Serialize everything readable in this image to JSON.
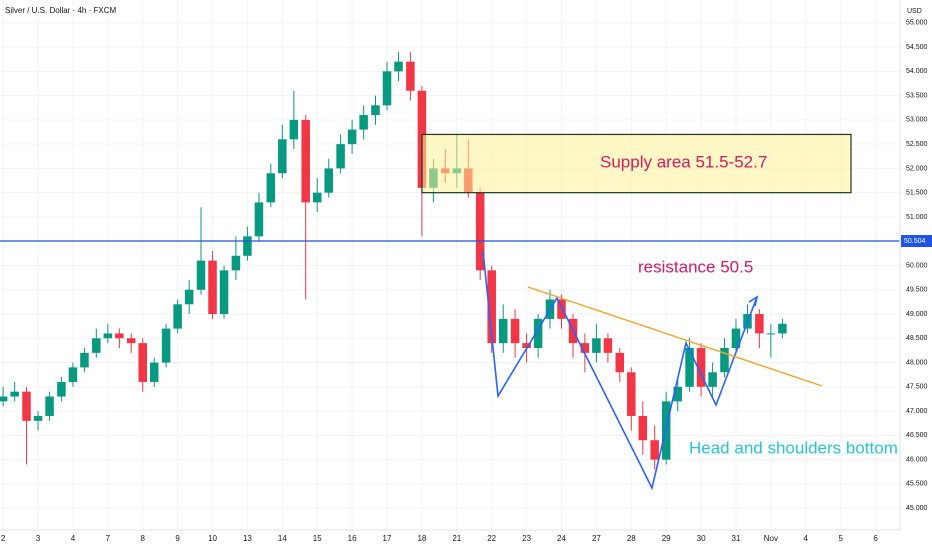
{
  "chart_data": {
    "type": "candlestick",
    "title": "Silver / U.S. Dollar · 4h · FXCM",
    "currency": "USD",
    "up_color": "#089981",
    "down_color": "#f23645",
    "price_line": 50.504,
    "price_line_color": "#1e53e5",
    "supply_zone": [
      51.5,
      52.7
    ],
    "annotations": [
      {
        "text": "Supply area 51.5-52.7",
        "color": "#d81b60"
      },
      {
        "text": "resistance 50.5",
        "color": "#d81b60"
      },
      {
        "text": "Head and shoulders bottom",
        "color": "#26c6da"
      }
    ],
    "xlim": [
      -0.09,
      25.7
    ],
    "xticks": [
      {
        "value": 0,
        "label": "2"
      },
      {
        "value": 1,
        "label": "3"
      },
      {
        "value": 2,
        "label": "4"
      },
      {
        "value": 3,
        "label": "7"
      },
      {
        "value": 4,
        "label": "8"
      },
      {
        "value": 5,
        "label": "9"
      },
      {
        "value": 6,
        "label": "10"
      },
      {
        "value": 7,
        "label": "13"
      },
      {
        "value": 8,
        "label": "14"
      },
      {
        "value": 9,
        "label": "15"
      },
      {
        "value": 10,
        "label": "16"
      },
      {
        "value": 11,
        "label": "17"
      },
      {
        "value": 12,
        "label": "18"
      },
      {
        "value": 13,
        "label": "21"
      },
      {
        "value": 14,
        "label": "22"
      },
      {
        "value": 15,
        "label": "23"
      },
      {
        "value": 16,
        "label": "24"
      },
      {
        "value": 17,
        "label": "27"
      },
      {
        "value": 18,
        "label": "28"
      },
      {
        "value": 19,
        "label": "29"
      },
      {
        "value": 20,
        "label": "30"
      },
      {
        "value": 21,
        "label": "31"
      },
      {
        "value": 22,
        "label": "Nov"
      },
      {
        "value": 23,
        "label": "4"
      },
      {
        "value": 24,
        "label": "5"
      },
      {
        "value": 25,
        "label": "6"
      }
    ],
    "ylim": [
      44.55,
      55.47
    ],
    "yticks": [
      {
        "value": 45,
        "label": "45.000"
      },
      {
        "value": 45.5,
        "label": "45.500"
      },
      {
        "value": 46,
        "label": "46.000"
      },
      {
        "value": 46.5,
        "label": "46.500"
      },
      {
        "value": 47,
        "label": "47.000"
      },
      {
        "value": 47.5,
        "label": "47.500"
      },
      {
        "value": 48,
        "label": "48.000"
      },
      {
        "value": 48.5,
        "label": "48.500"
      },
      {
        "value": 49,
        "label": "49.000"
      },
      {
        "value": 49.5,
        "label": "49.500"
      },
      {
        "value": 50,
        "label": "50.000"
      },
      {
        "value": 50.5,
        "label": "50.500"
      },
      {
        "value": 51,
        "label": "51.000"
      },
      {
        "value": 51.5,
        "label": "51.500"
      },
      {
        "value": 52,
        "label": "52.000"
      },
      {
        "value": 52.5,
        "label": "52.500"
      },
      {
        "value": 53,
        "label": "53.000"
      },
      {
        "value": 53.5,
        "label": "53.500"
      },
      {
        "value": 54,
        "label": "54.000"
      },
      {
        "value": 54.5,
        "label": "54.500"
      },
      {
        "value": 55,
        "label": "55.000"
      }
    ],
    "grid": true,
    "x": [
      0,
      0.33,
      0.67,
      1,
      1.33,
      1.67,
      2,
      2.33,
      2.67,
      3,
      3.33,
      3.67,
      4,
      4.33,
      4.67,
      5,
      5.33,
      5.67,
      6,
      6.33,
      6.67,
      7,
      7.33,
      7.67,
      8,
      8.33,
      8.67,
      9,
      9.33,
      9.67,
      10,
      10.33,
      10.67,
      11,
      11.33,
      11.67,
      12,
      12.33,
      12.67,
      13,
      13.33,
      13.67,
      14,
      14.33,
      14.67,
      15,
      15.33,
      15.67,
      16,
      16.33,
      16.67,
      17,
      17.33,
      17.67,
      18,
      18.33,
      18.67,
      19,
      19.33,
      19.67,
      20,
      20.33,
      20.67,
      21,
      21.33,
      21.67,
      22,
      22.33
    ],
    "open": [
      47.2,
      47.3,
      47.4,
      46.8,
      46.9,
      47.3,
      47.6,
      47.9,
      48.2,
      48.5,
      48.6,
      48.5,
      48.4,
      47.6,
      48.0,
      48.7,
      49.2,
      49.5,
      50.1,
      49.0,
      49.9,
      50.2,
      50.6,
      51.3,
      51.9,
      52.6,
      53.0,
      51.3,
      51.5,
      52.0,
      52.5,
      52.8,
      53.1,
      53.3,
      54.0,
      54.2,
      53.6,
      51.6,
      52.0,
      51.9,
      52.0,
      51.5,
      49.9,
      48.4,
      48.9,
      48.4,
      48.3,
      48.9,
      49.3,
      48.9,
      48.4,
      48.2,
      48.5,
      48.2,
      47.8,
      46.9,
      46.4,
      46.0,
      47.2,
      47.5,
      48.3,
      47.5,
      47.8,
      48.3,
      48.7,
      49.0,
      48.6,
      48.6
    ],
    "high": [
      47.5,
      47.6,
      47.5,
      47.0,
      47.4,
      47.7,
      48.0,
      48.3,
      48.7,
      48.8,
      48.7,
      48.6,
      48.5,
      48.1,
      48.8,
      49.3,
      49.7,
      51.2,
      50.3,
      50.0,
      50.6,
      50.8,
      51.5,
      52.1,
      52.9,
      53.6,
      53.1,
      51.8,
      52.2,
      52.7,
      53.0,
      53.3,
      53.5,
      54.2,
      54.4,
      54.4,
      53.7,
      52.2,
      52.4,
      52.7,
      52.6,
      51.6,
      50.0,
      49.2,
      49.1,
      48.6,
      49.0,
      49.5,
      49.4,
      49.0,
      48.6,
      48.8,
      48.6,
      48.3,
      47.9,
      47.2,
      46.7,
      47.4,
      47.7,
      48.5,
      48.4,
      48.0,
      48.5,
      48.9,
      49.2,
      49.1,
      48.8,
      48.9
    ],
    "low": [
      47.1,
      47.2,
      45.9,
      46.6,
      46.8,
      47.2,
      47.5,
      47.8,
      48.1,
      48.4,
      48.3,
      48.2,
      47.4,
      47.5,
      47.9,
      48.6,
      49.0,
      49.4,
      48.9,
      48.9,
      49.7,
      50.1,
      50.5,
      51.2,
      51.8,
      52.4,
      49.3,
      51.1,
      51.4,
      51.9,
      52.3,
      52.6,
      52.9,
      53.2,
      53.8,
      53.4,
      50.6,
      51.3,
      51.7,
      51.6,
      51.4,
      49.7,
      48.2,
      48.2,
      48.1,
      48.0,
      48.1,
      48.7,
      48.7,
      48.1,
      47.8,
      48.0,
      48.0,
      47.6,
      46.6,
      46.1,
      45.8,
      45.9,
      47.0,
      47.4,
      47.3,
      47.3,
      47.7,
      48.2,
      48.6,
      48.3,
      48.1,
      48.5
    ],
    "close": [
      47.3,
      47.4,
      46.8,
      46.9,
      47.3,
      47.6,
      47.9,
      48.2,
      48.5,
      48.6,
      48.5,
      48.4,
      47.6,
      48.0,
      48.7,
      49.2,
      49.5,
      50.1,
      49.0,
      49.9,
      50.2,
      50.6,
      51.3,
      51.9,
      52.6,
      53.0,
      51.3,
      51.5,
      52.0,
      52.5,
      52.8,
      53.1,
      53.3,
      54.0,
      54.2,
      53.6,
      51.6,
      52.0,
      51.9,
      52.0,
      51.5,
      49.9,
      48.4,
      48.9,
      48.4,
      48.3,
      48.9,
      49.3,
      48.9,
      48.4,
      48.2,
      48.5,
      48.2,
      47.8,
      46.9,
      46.4,
      46.0,
      47.2,
      47.5,
      48.3,
      47.5,
      47.8,
      48.3,
      48.7,
      49.0,
      48.6,
      48.6,
      48.8
    ]
  }
}
